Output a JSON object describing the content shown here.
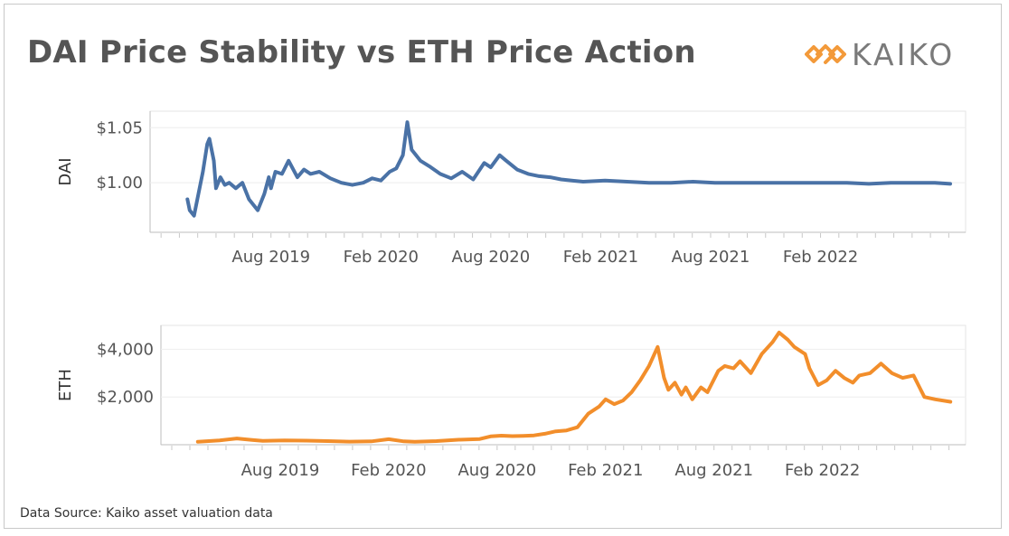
{
  "title": "DAI Price Stability vs ETH Price Action",
  "logo": {
    "text": "KAIKO",
    "icon": "kaiko-diamond-icon",
    "color": "#f39a3a"
  },
  "source": "Data Source: Kaiko asset valuation data",
  "chart_data": [
    {
      "type": "line",
      "ylabel": "DAI",
      "series_color": "#4a72a6",
      "xlim": [
        2019.03,
        2022.74
      ],
      "ylim": [
        0.955,
        1.065
      ],
      "yticks": [
        1.0,
        1.05
      ],
      "ytick_labels": [
        "$1.00",
        "$1.05"
      ],
      "xticks": [
        2019.58,
        2020.08,
        2020.58,
        2021.08,
        2021.58,
        2022.08
      ],
      "xtick_labels": [
        "Aug 2019",
        "Feb 2020",
        "Aug 2020",
        "Feb 2021",
        "Aug 2021",
        "Feb 2022"
      ],
      "x": [
        2019.2,
        2019.21,
        2019.23,
        2019.25,
        2019.27,
        2019.29,
        2019.3,
        2019.32,
        2019.33,
        2019.35,
        2019.37,
        2019.39,
        2019.42,
        2019.45,
        2019.48,
        2019.52,
        2019.55,
        2019.57,
        2019.58,
        2019.6,
        2019.63,
        2019.66,
        2019.7,
        2019.73,
        2019.76,
        2019.8,
        2019.85,
        2019.9,
        2019.95,
        2020.0,
        2020.04,
        2020.08,
        2020.12,
        2020.15,
        2020.18,
        2020.2,
        2020.22,
        2020.24,
        2020.26,
        2020.3,
        2020.35,
        2020.4,
        2020.45,
        2020.5,
        2020.55,
        2020.58,
        2020.62,
        2020.65,
        2020.7,
        2020.75,
        2020.8,
        2020.85,
        2020.9,
        2021.0,
        2021.1,
        2021.2,
        2021.3,
        2021.4,
        2021.5,
        2021.6,
        2021.7,
        2021.8,
        2021.9,
        2022.0,
        2022.1,
        2022.2,
        2022.3,
        2022.4,
        2022.5,
        2022.6,
        2022.67
      ],
      "values": [
        0.985,
        0.975,
        0.97,
        0.99,
        1.01,
        1.035,
        1.04,
        1.02,
        0.995,
        1.005,
        0.998,
        1.0,
        0.995,
        1.0,
        0.985,
        0.975,
        0.99,
        1.005,
        0.995,
        1.01,
        1.008,
        1.02,
        1.005,
        1.012,
        1.008,
        1.01,
        1.004,
        1.0,
        0.998,
        1.0,
        1.004,
        1.002,
        1.01,
        1.013,
        1.025,
        1.055,
        1.03,
        1.025,
        1.02,
        1.015,
        1.008,
        1.004,
        1.01,
        1.003,
        1.018,
        1.014,
        1.025,
        1.02,
        1.012,
        1.008,
        1.006,
        1.005,
        1.003,
        1.001,
        1.002,
        1.001,
        1.0,
        1.0,
        1.001,
        1.0,
        1.0,
        1.0,
        1.0,
        1.0,
        1.0,
        1.0,
        0.999,
        1.0,
        1.0,
        1.0,
        0.999
      ]
    },
    {
      "type": "line",
      "ylabel": "ETH",
      "series_color": "#f28e2b",
      "xlim": [
        2019.03,
        2022.74
      ],
      "ylim": [
        0,
        5000
      ],
      "yticks": [
        2000,
        4000
      ],
      "ytick_labels": [
        "$2,000",
        "$4,000"
      ],
      "xticks": [
        2019.58,
        2020.08,
        2020.58,
        2021.08,
        2021.58,
        2022.08
      ],
      "xtick_labels": [
        "Aug 2019",
        "Feb 2020",
        "Aug 2020",
        "Feb 2021",
        "Aug 2021",
        "Feb 2022"
      ],
      "x": [
        2019.2,
        2019.3,
        2019.38,
        2019.45,
        2019.5,
        2019.6,
        2019.7,
        2019.8,
        2019.9,
        2020.0,
        2020.08,
        2020.15,
        2020.2,
        2020.3,
        2020.4,
        2020.5,
        2020.55,
        2020.6,
        2020.65,
        2020.7,
        2020.75,
        2020.8,
        2020.85,
        2020.9,
        2020.95,
        2021.0,
        2021.05,
        2021.08,
        2021.12,
        2021.16,
        2021.2,
        2021.24,
        2021.28,
        2021.32,
        2021.35,
        2021.37,
        2021.4,
        2021.43,
        2021.45,
        2021.48,
        2021.52,
        2021.55,
        2021.6,
        2021.63,
        2021.67,
        2021.7,
        2021.75,
        2021.8,
        2021.85,
        2021.88,
        2021.92,
        2021.95,
        2022.0,
        2022.02,
        2022.06,
        2022.1,
        2022.14,
        2022.18,
        2022.22,
        2022.25,
        2022.3,
        2022.35,
        2022.4,
        2022.45,
        2022.5,
        2022.55,
        2022.6,
        2022.67
      ],
      "values": [
        120,
        180,
        260,
        200,
        160,
        180,
        170,
        150,
        130,
        140,
        230,
        140,
        120,
        150,
        210,
        240,
        350,
        380,
        360,
        370,
        390,
        460,
        560,
        600,
        730,
        1300,
        1600,
        1900,
        1700,
        1850,
        2200,
        2700,
        3300,
        4100,
        2800,
        2300,
        2600,
        2100,
        2400,
        1900,
        2400,
        2200,
        3100,
        3300,
        3200,
        3500,
        3000,
        3800,
        4300,
        4700,
        4400,
        4100,
        3800,
        3200,
        2500,
        2700,
        3100,
        2800,
        2600,
        2900,
        3000,
        3400,
        3000,
        2800,
        2900,
        2000,
        1900,
        1800
      ]
    }
  ]
}
